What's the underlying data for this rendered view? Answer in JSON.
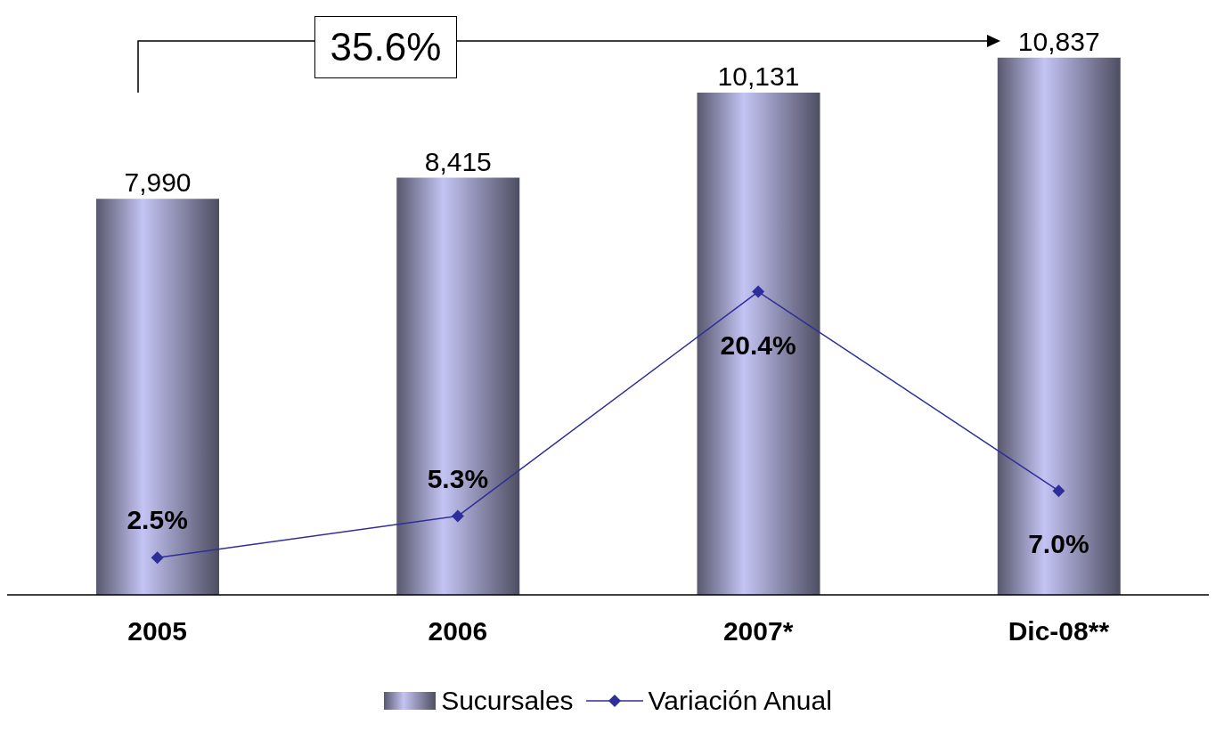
{
  "chart_data": {
    "type": "bar",
    "categories": [
      "2005",
      "2006",
      "2007*",
      "Dic-08**"
    ],
    "series": [
      {
        "name": "Sucursales",
        "color": "#c4c4f4",
        "values": [
          7990,
          8415,
          10131,
          10837
        ],
        "value_labels": [
          "7,990",
          "8,415",
          "10,131",
          "10,837"
        ]
      },
      {
        "name": "Variación Anual",
        "type": "line",
        "axis": "y2",
        "color": "#2e2e9a",
        "values": [
          2.5,
          5.3,
          20.4,
          7.0
        ],
        "value_labels": [
          "2.5%",
          "5.3%",
          "20.4%",
          "7.0%"
        ]
      }
    ],
    "marker": "diamond",
    "legend": "bottom",
    "annotations": [
      "35.6%"
    ]
  }
}
